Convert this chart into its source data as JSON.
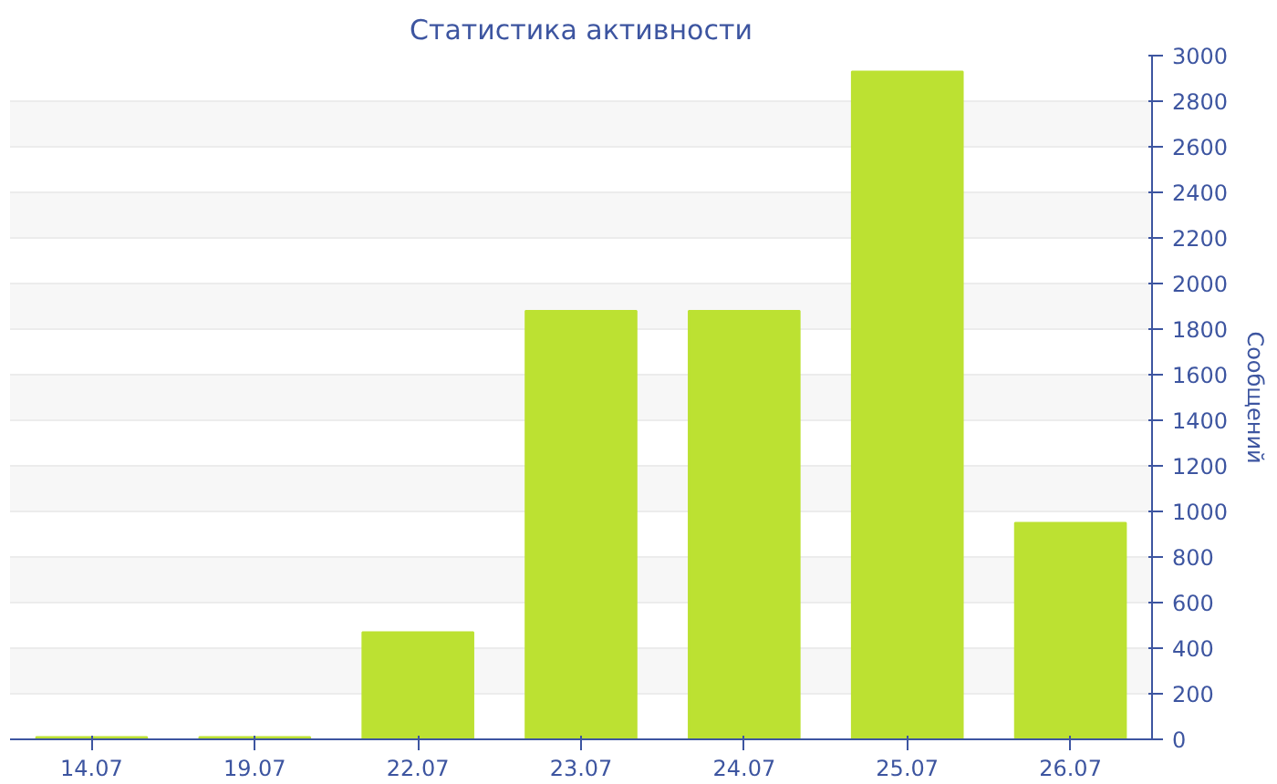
{
  "chart_data": {
    "type": "bar",
    "title": "Статистика активности",
    "ylabel": "Сообщений",
    "categories": [
      "14.07",
      "19.07",
      "22.07",
      "23.07",
      "24.07",
      "25.07",
      "26.07"
    ],
    "values": [
      10,
      10,
      470,
      1880,
      1880,
      2930,
      950
    ],
    "color": "#bce132",
    "ylim": [
      0,
      3000
    ],
    "yticks": [
      0,
      200,
      400,
      600,
      800,
      1000,
      1200,
      1400,
      1600,
      1800,
      2000,
      2200,
      2400,
      2600,
      2800,
      3000
    ],
    "grid": "y"
  }
}
